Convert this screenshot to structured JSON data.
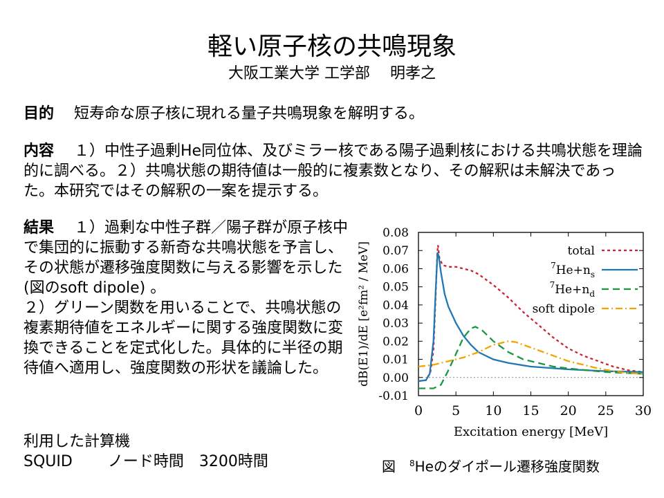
{
  "title": "軽い原子核の共鳴現象",
  "subtitle": "大阪工業大学 工学部　 明孝之",
  "purpose": {
    "label": "目的",
    "text": "短寿命な原子核に現れる量子共鳴現象を解明する。"
  },
  "content": {
    "label": "内容",
    "text": "１）中性子過剰He同位体、及びミラー核である陽子過剰核における共鳴状態を理論的に調べる。２）共鳴状態の期待値は一般的に複素数となり、その解釈は未解決であった。本研究ではその解釈の一案を提示する。"
  },
  "result": {
    "label": "結果",
    "text1": "１）過剰な中性子群／陽子群が原子核中で集団的に振動する新奇な共鳴状態を予言し、その状態が遷移強度関数に与える影響を示した(図のsoft dipole) 。",
    "text2": "２）グリーン関数を用いることで、共鳴状態の複素期待値をエネルギーに関する強度関数に変換できることを定式化した。具体的に半径の期待値へ適用し、強度関数の形状を議論した。"
  },
  "computer": {
    "label": "利用した計算機",
    "name": "SQUID",
    "usage": "ノード時間",
    "hours": "3200時間"
  },
  "caption": {
    "prefix": "図",
    "mass": "8",
    "text": "Heのダイポール遷移強度関数"
  },
  "chart_data": {
    "type": "line",
    "xlabel": "Excitation energy  [MeV]",
    "ylabel": "dB(E1)/dE  [e²fm² / MeV]",
    "xlim": [
      0,
      30
    ],
    "ylim": [
      -0.01,
      0.08
    ],
    "x_ticks": [
      "0",
      "5",
      "10",
      "15",
      "20",
      "25",
      "30"
    ],
    "y_ticks": [
      "-0.01",
      "0.00",
      "0.01",
      "0.02",
      "0.03",
      "0.04",
      "0.05",
      "0.06",
      "0.07",
      "0.08"
    ],
    "legend_position": "top-right",
    "series": [
      {
        "name": "total",
        "color": "#cc2233",
        "style": "dotted",
        "points": [
          [
            0,
            -0.002
          ],
          [
            1,
            -0.0015
          ],
          [
            1.6,
            0.003
          ],
          [
            2,
            0.015
          ],
          [
            2.3,
            0.045
          ],
          [
            2.5,
            0.068
          ],
          [
            2.6,
            0.073
          ],
          [
            2.8,
            0.066
          ],
          [
            3.2,
            0.062
          ],
          [
            4,
            0.061
          ],
          [
            5,
            0.061
          ],
          [
            6,
            0.06
          ],
          [
            7,
            0.059
          ],
          [
            8,
            0.057
          ],
          [
            9,
            0.054
          ],
          [
            10,
            0.051
          ],
          [
            12,
            0.044
          ],
          [
            14,
            0.036
          ],
          [
            16,
            0.029
          ],
          [
            18,
            0.022
          ],
          [
            20,
            0.016
          ],
          [
            22,
            0.012
          ],
          [
            24,
            0.009
          ],
          [
            26,
            0.006
          ],
          [
            28,
            0.004
          ],
          [
            30,
            0.003
          ]
        ]
      },
      {
        "name": "⁷He+n_s",
        "label_base": "He+n",
        "label_mass": "7",
        "label_sub": "s",
        "color": "#1f77b4",
        "style": "solid",
        "points": [
          [
            0,
            -0.002
          ],
          [
            1,
            -0.0015
          ],
          [
            1.5,
            0.002
          ],
          [
            2,
            0.02
          ],
          [
            2.3,
            0.048
          ],
          [
            2.55,
            0.069
          ],
          [
            2.7,
            0.067
          ],
          [
            3,
            0.058
          ],
          [
            3.5,
            0.046
          ],
          [
            4,
            0.039
          ],
          [
            5,
            0.03
          ],
          [
            6,
            0.023
          ],
          [
            7,
            0.018
          ],
          [
            8,
            0.014
          ],
          [
            10,
            0.01
          ],
          [
            12,
            0.008
          ],
          [
            15,
            0.006
          ],
          [
            20,
            0.0045
          ],
          [
            25,
            0.0035
          ],
          [
            30,
            0.003
          ]
        ]
      },
      {
        "name": "⁷He+n_d",
        "label_base": "He+n",
        "label_mass": "7",
        "label_sub": "d",
        "color": "#1a9641",
        "style": "dashed",
        "points": [
          [
            0,
            -0.006
          ],
          [
            2,
            -0.006
          ],
          [
            3,
            -0.004
          ],
          [
            4,
            0.004
          ],
          [
            5,
            0.013
          ],
          [
            6,
            0.022
          ],
          [
            7,
            0.027
          ],
          [
            7.6,
            0.028
          ],
          [
            8.5,
            0.026
          ],
          [
            10,
            0.02
          ],
          [
            12,
            0.014
          ],
          [
            14,
            0.01
          ],
          [
            16,
            0.008
          ],
          [
            18,
            0.006
          ],
          [
            20,
            0.005
          ],
          [
            25,
            0.003
          ],
          [
            30,
            0.002
          ]
        ]
      },
      {
        "name": "soft dipole",
        "color": "#f0a500",
        "style": "dashdot",
        "points": [
          [
            0,
            0.006
          ],
          [
            2,
            0.007
          ],
          [
            4,
            0.009
          ],
          [
            6,
            0.011
          ],
          [
            8,
            0.014
          ],
          [
            10,
            0.018
          ],
          [
            11,
            0.019
          ],
          [
            12,
            0.02
          ],
          [
            13,
            0.0195
          ],
          [
            14,
            0.018
          ],
          [
            16,
            0.015
          ],
          [
            18,
            0.012
          ],
          [
            20,
            0.009
          ],
          [
            22,
            0.007
          ],
          [
            24,
            0.005
          ],
          [
            26,
            0.0035
          ],
          [
            28,
            0.0025
          ],
          [
            30,
            0.002
          ]
        ]
      }
    ]
  }
}
